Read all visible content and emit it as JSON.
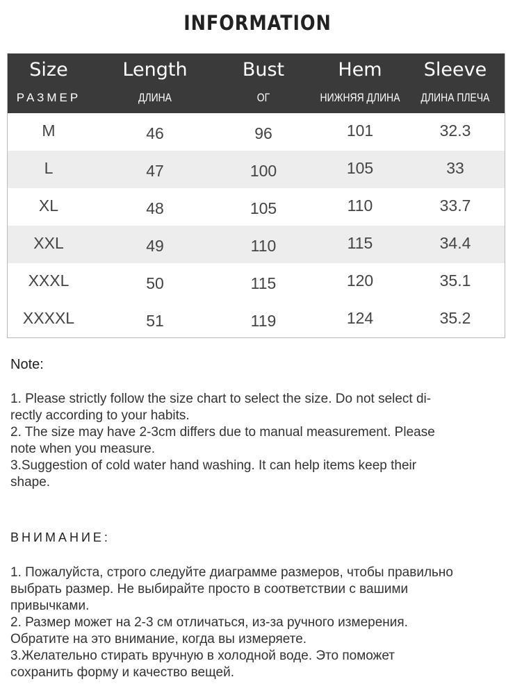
{
  "title": "INFORMATION",
  "table": {
    "columns": [
      {
        "en": "Size",
        "ru": "РАЗМЕР"
      },
      {
        "en": "Length",
        "ru": "ДЛИНА"
      },
      {
        "en": "Bust",
        "ru": "ОГ"
      },
      {
        "en": "Hem",
        "ru": "НИЖНЯЯ ДЛИНА"
      },
      {
        "en": "Sleeve",
        "ru": "ДЛИНА ПЛЕЧА"
      }
    ],
    "rows": [
      [
        "M",
        "46",
        "96",
        "101",
        "32.3"
      ],
      [
        "L",
        "47",
        "100",
        "105",
        "33"
      ],
      [
        "XL",
        "48",
        "105",
        "110",
        "33.7"
      ],
      [
        "XXL",
        "49",
        "110",
        "115",
        "34.4"
      ],
      [
        "XXXL",
        "50",
        "115",
        "120",
        "35.1"
      ],
      [
        "XXXXL",
        "51",
        "119",
        "124",
        "35.2"
      ]
    ]
  },
  "note": {
    "heading": "Note:",
    "lines": [
      "1. Please strictly follow the size chart  to select the size. Do not select di-",
      "rectly according to your habits.",
      "2. The size may have 2-3cm differs due to manual measurement. Please",
      "note when you measure.",
      "3.Suggestion of cold water hand washing. It can help items keep their",
      "shape."
    ]
  },
  "note_ru": {
    "heading": "ВНИМАНИЕ:",
    "lines": [
      "1. Пожалуйста, строго следуйте диаграмме размеров, чтобы правильно",
      "выбрать размер. Не выбирайте просто в соответствии с вашими",
      "привычками.",
      "2. Размер может на 2-3 см отличаться, из-за ручного измерения.",
      "Обратите на это внимание, когда вы измеряете.",
      "3.Желательно стирать вручную в холодной воде. Это поможет",
      "сохранить форму и качество вещей."
    ]
  }
}
